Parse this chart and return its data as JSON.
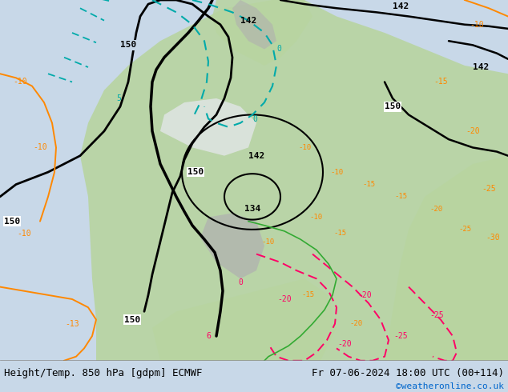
{
  "title_left": "Height/Temp. 850 hPa [gdpm] ECMWF",
  "title_right": "Fr 07-06-2024 18:00 UTC (00+114)",
  "watermark": "©weatheronline.co.uk",
  "watermark_color": "#0066cc",
  "bg_color": "#c8d8e8",
  "land_color_light": "#b8d4a0",
  "land_color_medium": "#a0c080",
  "gray_color": "#b0b0b0",
  "white_region": "#e8e8f0",
  "figsize": [
    6.34,
    4.9
  ],
  "dpi": 100,
  "bottom_bar_color": "#f0f0f0",
  "font_family": "monospace",
  "title_fontsize": 9,
  "watermark_fontsize": 8,
  "contour_black_color": "#000000",
  "contour_cyan_color": "#00aaaa",
  "contour_orange_color": "#ff8800",
  "contour_pink_color": "#ff0066",
  "contour_green_color": "#33aa33",
  "contour_label_150": "150",
  "contour_label_142": "142",
  "contour_label_134": "134"
}
